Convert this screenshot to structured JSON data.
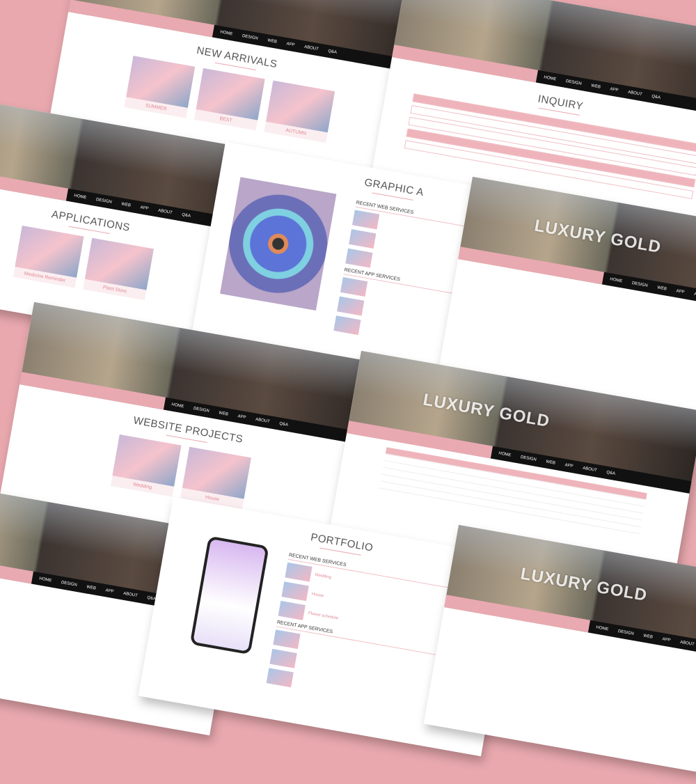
{
  "brand": "LUXURY GOLD",
  "nav": [
    "HOME",
    "DESIGN",
    "WEB",
    "APP",
    "ABOUT",
    "Q&A"
  ],
  "cards": [
    {
      "title": "NEW ARRIVALS",
      "items": [
        "SUMMER",
        "BEST",
        "AUTUMN"
      ]
    },
    {
      "title": "INQUIRY"
    },
    {
      "title": "APPLICATIONS",
      "items": [
        "Medicine Reminder",
        "Plant Store"
      ]
    },
    {
      "title": "GRAPHIC A",
      "sections": [
        "RECENT WEB SERVICES",
        "RECENT APP SERVICES"
      ]
    },
    {
      "title": "WEBSITE PROJECTS",
      "items": [
        "Wedding",
        "House"
      ]
    },
    {
      "title": "PORTFOLIO",
      "sections": [
        "RECENT WEB SERVICES",
        "RECENT APP SERVICES"
      ],
      "items": [
        "Wedding",
        "House",
        "Flower schedule"
      ]
    }
  ]
}
